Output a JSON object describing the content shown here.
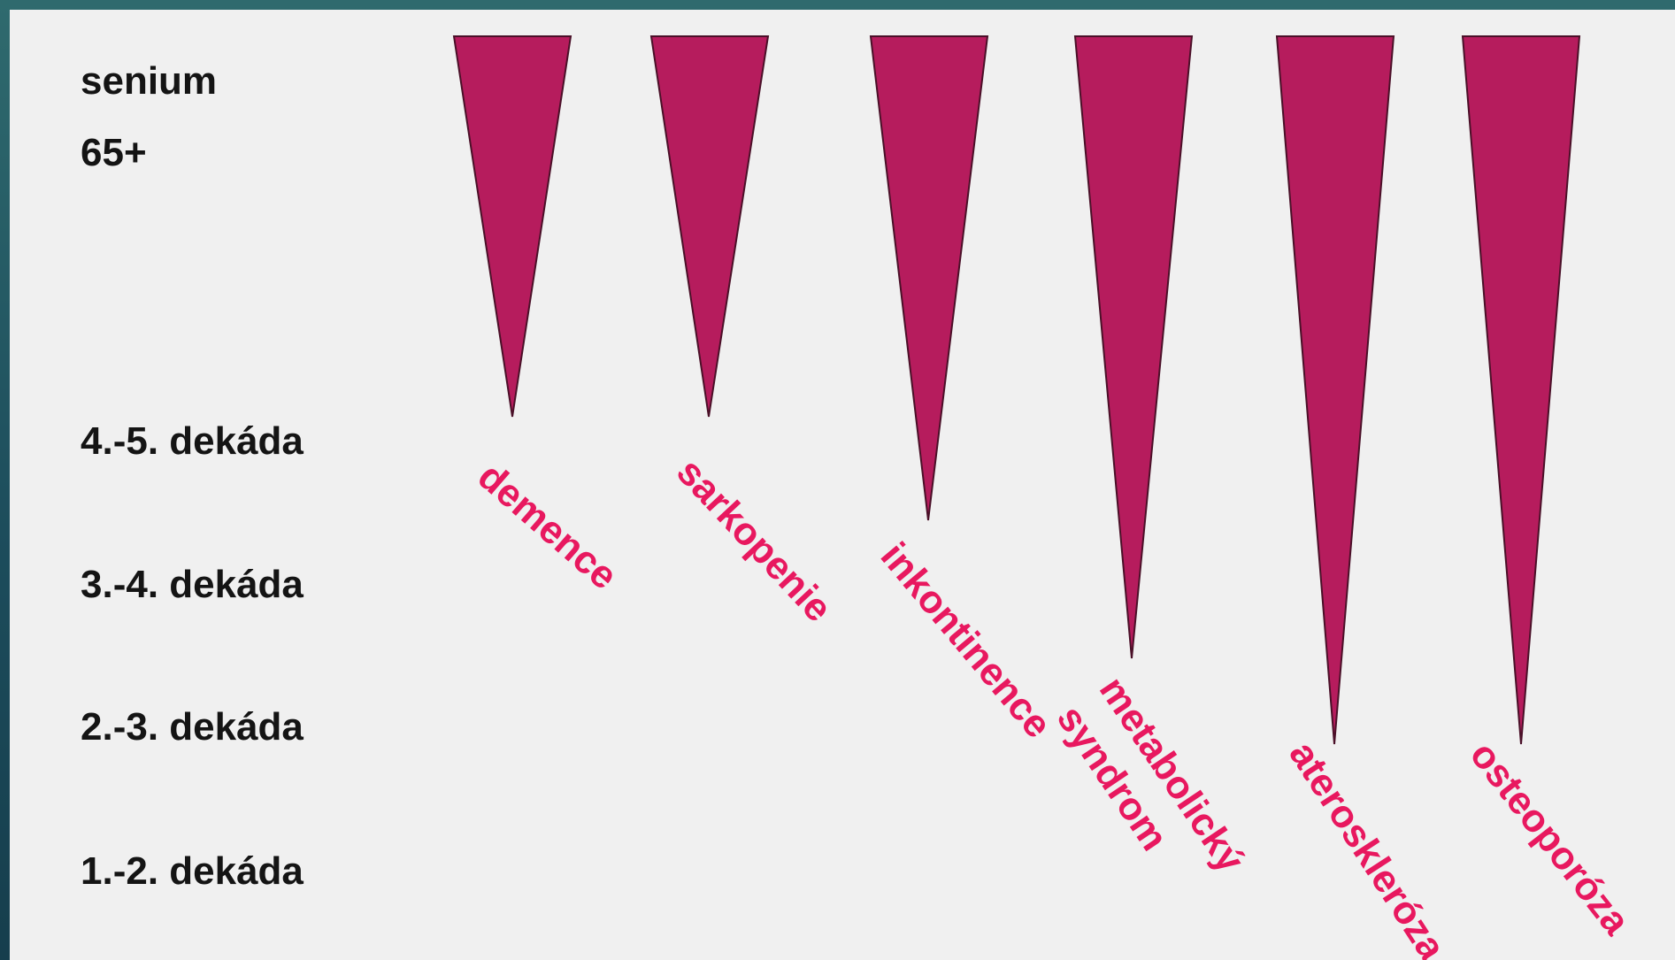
{
  "age_scale": [
    {
      "id": "senium",
      "label": "senium"
    },
    {
      "id": "senium-age",
      "label": "65+"
    },
    {
      "id": "decade-4-5",
      "label": "4.-5. dekáda"
    },
    {
      "id": "decade-3-4",
      "label": "3.-4. dekáda"
    },
    {
      "id": "decade-2-3",
      "label": "2.-3. dekáda"
    },
    {
      "id": "decade-1-2",
      "label": "1.-2. dekáda"
    }
  ],
  "diseases": [
    {
      "id": "demence",
      "lines": [
        "demence"
      ],
      "onset_level": "4.-5. dekáda"
    },
    {
      "id": "sarkopenie",
      "lines": [
        "sarkopenie"
      ],
      "onset_level": "4.-5. dekáda"
    },
    {
      "id": "inkontinence",
      "lines": [
        "inkontinence"
      ],
      "onset_level": "3.-4. dekáda"
    },
    {
      "id": "metabolicky-syndrom",
      "lines": [
        "metabolický",
        "syndrom"
      ],
      "onset_level": "2.-3. dekáda"
    },
    {
      "id": "ateroskleroza",
      "lines": [
        "ateroskleróza"
      ],
      "onset_level": "2.-3. dekáda"
    },
    {
      "id": "osteoporoza",
      "lines": [
        "osteoporóza"
      ],
      "onset_level": "2.-3. dekáda"
    }
  ],
  "colors": {
    "wedge_fill": "#b61c5d",
    "wedge_edge": "#4a1028",
    "label_text": "#e8185f",
    "age_text": "#141414",
    "background": "#f0f0f0",
    "frame": "#1d4d5c"
  }
}
